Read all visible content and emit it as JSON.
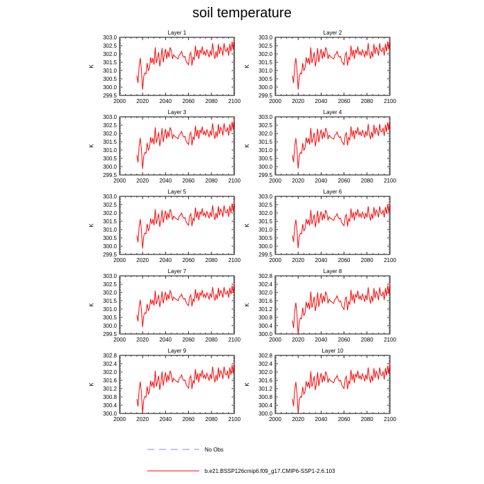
{
  "title": "soil temperature",
  "chart_data": {
    "type": "line",
    "title": "soil temperature",
    "x": {
      "start": 2015,
      "end": 2100,
      "step": 1,
      "lim": [
        2000,
        2100
      ],
      "ticks": [
        2000,
        2020,
        2040,
        2060,
        2080,
        2100
      ]
    },
    "base_profile": [
      0.0,
      -0.45,
      0.55,
      1.05,
      0.35,
      -0.85,
      -0.05,
      0.15,
      0.1,
      0.75,
      0.3,
      0.45,
      1.1,
      0.75,
      1.05,
      0.65,
      1.7,
      0.75,
      1.05,
      1.4,
      0.55,
      1.0,
      1.65,
      0.8,
      1.25,
      1.6,
      1.0,
      1.45,
      1.1,
      1.7,
      1.5,
      1.0,
      1.25,
      1.15,
      1.1,
      1.05,
      1.0,
      1.25,
      1.3,
      1.45,
      1.2,
      1.1,
      1.15,
      0.85,
      0.75,
      0.65,
      1.25,
      1.4,
      0.6,
      1.1,
      0.95,
      1.8,
      1.15,
      1.55,
      1.0,
      1.55,
      1.35,
      1.75,
      1.25,
      1.45,
      1.2,
      1.55,
      1.35,
      1.1,
      1.5,
      1.2,
      1.95,
      1.35,
      1.0,
      1.45,
      1.1,
      1.9,
      1.3,
      1.7,
      1.55,
      1.2,
      1.95,
      1.5,
      1.45,
      1.7,
      1.2,
      1.9,
      1.45,
      2.05,
      1.55,
      2.2
    ],
    "series": [
      {
        "layer": "Layer 1",
        "ylabel": "K",
        "ylim": [
          299.5,
          303.0
        ],
        "yticks": [
          "303.0",
          "302.5",
          "302.0",
          "301.5",
          "301.0",
          "300.5",
          "300.0",
          "299.5"
        ],
        "baseline": 300.7,
        "scale": 1.0,
        "color": "#ff0000"
      },
      {
        "layer": "Layer 2",
        "ylabel": "K",
        "ylim": [
          299.5,
          303.0
        ],
        "yticks": [
          "303.0",
          "302.5",
          "302.0",
          "301.5",
          "301.0",
          "300.5",
          "300.0",
          "299.5"
        ],
        "baseline": 300.7,
        "scale": 1.0,
        "color": "#ff0000"
      },
      {
        "layer": "Layer 3",
        "ylabel": "K",
        "ylim": [
          299.5,
          303.0
        ],
        "yticks": [
          "303.0",
          "302.5",
          "302.0",
          "301.5",
          "301.0",
          "300.5",
          "300.0",
          "299.5"
        ],
        "baseline": 300.7,
        "scale": 0.98,
        "color": "#ff0000"
      },
      {
        "layer": "Layer 4",
        "ylabel": "K",
        "ylim": [
          299.5,
          303.0
        ],
        "yticks": [
          "303.0",
          "302.5",
          "302.0",
          "301.5",
          "301.0",
          "300.5",
          "300.0",
          "299.5"
        ],
        "baseline": 300.7,
        "scale": 0.96,
        "color": "#ff0000"
      },
      {
        "layer": "Layer 5",
        "ylabel": "K",
        "ylim": [
          299.5,
          303.0
        ],
        "yticks": [
          "303.0",
          "302.5",
          "302.0",
          "301.5",
          "301.0",
          "300.5",
          "300.0",
          "299.5"
        ],
        "baseline": 300.65,
        "scale": 0.93,
        "color": "#ff0000"
      },
      {
        "layer": "Layer 6",
        "ylabel": "K",
        "ylim": [
          299.5,
          303.0
        ],
        "yticks": [
          "303.0",
          "302.5",
          "302.0",
          "301.5",
          "301.0",
          "300.5",
          "300.0",
          "299.5"
        ],
        "baseline": 300.65,
        "scale": 0.9,
        "color": "#ff0000"
      },
      {
        "layer": "Layer 7",
        "ylabel": "K",
        "ylim": [
          299.5,
          303.0
        ],
        "yticks": [
          "303.0",
          "302.5",
          "302.0",
          "301.5",
          "301.0",
          "300.5",
          "300.0",
          "299.5"
        ],
        "baseline": 300.65,
        "scale": 0.86,
        "color": "#ff0000"
      },
      {
        "layer": "Layer 8",
        "ylabel": "K",
        "ylim": [
          300.0,
          302.8
        ],
        "yticks": [
          "302.8",
          "302.4",
          "302.0",
          "301.6",
          "301.2",
          "300.8",
          "300.4",
          "300.0"
        ],
        "baseline": 300.65,
        "scale": 0.82,
        "color": "#ff0000"
      },
      {
        "layer": "Layer 9",
        "ylabel": "K",
        "ylim": [
          300.0,
          302.8
        ],
        "yticks": [
          "302.8",
          "302.4",
          "302.0",
          "301.6",
          "301.2",
          "300.8",
          "300.4",
          "300.0"
        ],
        "baseline": 300.7,
        "scale": 0.8,
        "color": "#ff0000"
      },
      {
        "layer": "Layer 10",
        "ylabel": "K",
        "ylim": [
          300.0,
          302.8
        ],
        "yticks": [
          "302.8",
          "302.4",
          "302.0",
          "301.6",
          "301.2",
          "300.8",
          "300.4",
          "300.0"
        ],
        "baseline": 300.7,
        "scale": 0.78,
        "color": "#ff0000"
      }
    ],
    "xtick_labels": [
      "2000",
      "2020",
      "2040",
      "2060",
      "2080",
      "2100"
    ],
    "legend": {
      "placement": "bottom-center",
      "entries": [
        {
          "label": "No Obs",
          "style": "dashed",
          "color": "#8080ff"
        },
        {
          "label": "b.e21.BSSP126cmip6.f09_g17.CMIP6-SSP1-2.6.103",
          "style": "solid",
          "color": "#ff0000"
        }
      ]
    }
  }
}
